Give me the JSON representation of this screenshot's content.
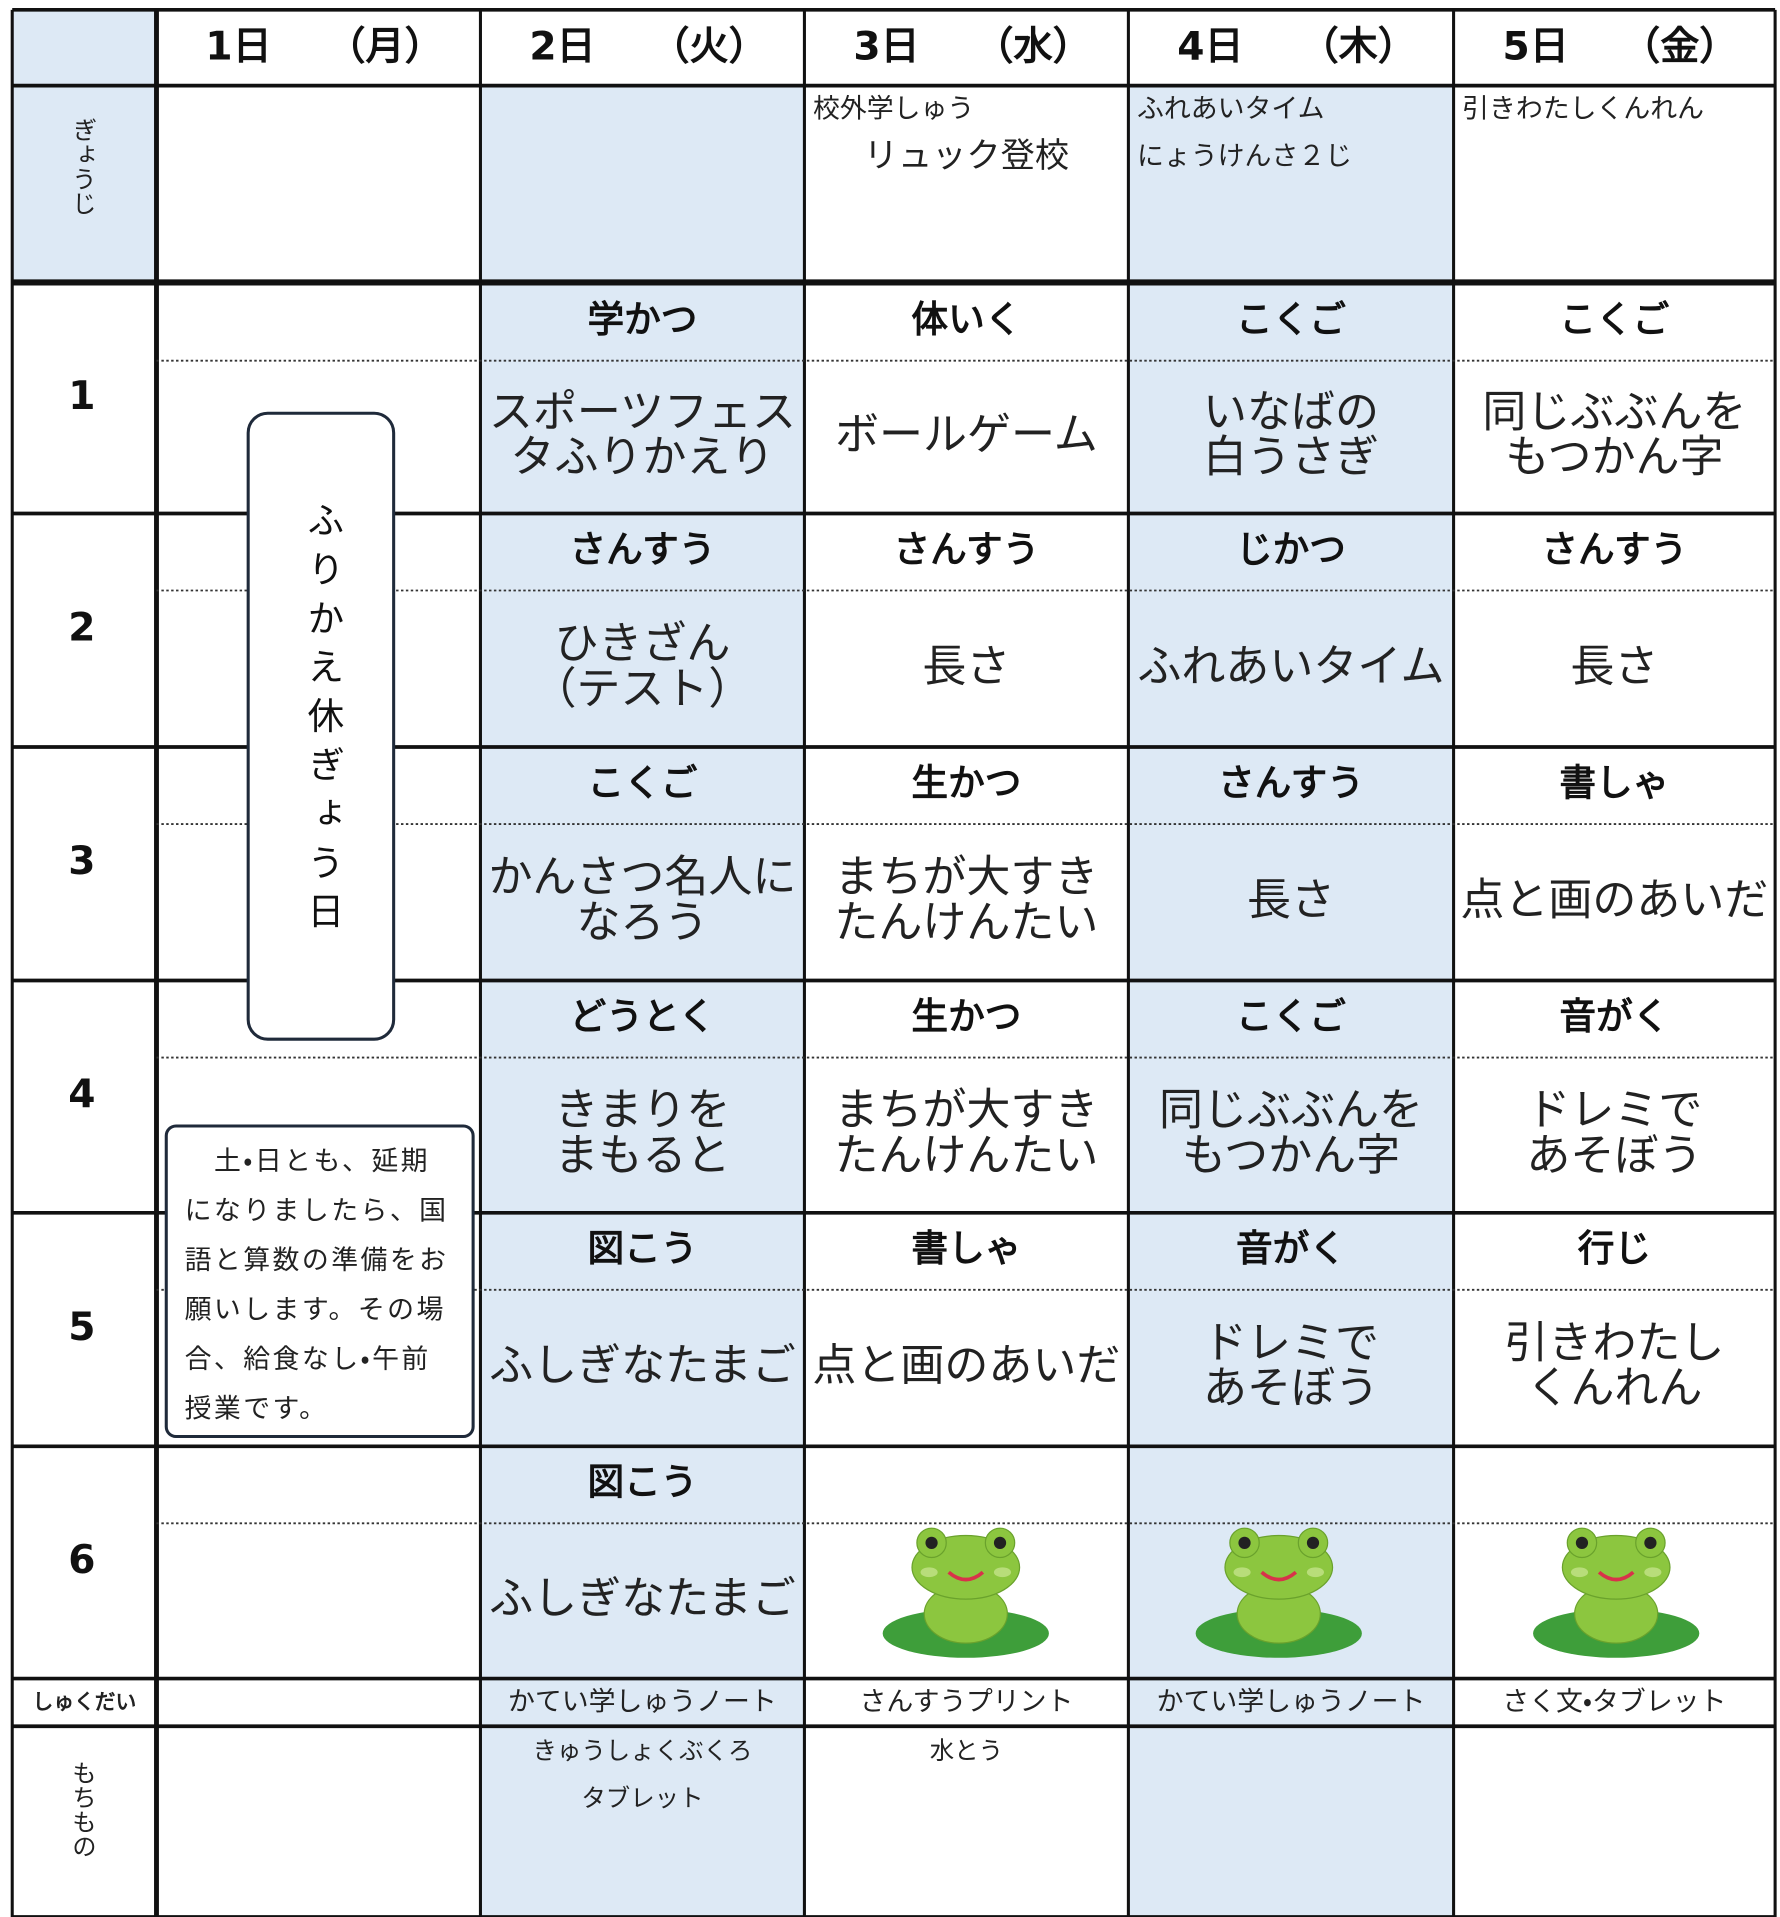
{
  "header": {
    "days": [
      {
        "day": "1日",
        "weekday": "（月）"
      },
      {
        "day": "2日",
        "weekday": "（火）"
      },
      {
        "day": "3日",
        "weekday": "（水）"
      },
      {
        "day": "4日",
        "weekday": "（木）"
      },
      {
        "day": "5日",
        "weekday": "（金）"
      }
    ]
  },
  "row_labels": {
    "gyouji": "ぎょうじ",
    "shukudai": "しゅくだい",
    "mochimono": "もちもの"
  },
  "gyouji": [
    null,
    null,
    [
      "校外学しゅう",
      "リュック登校"
    ],
    [
      "ふれあいタイム",
      "にょうけんさ２じ"
    ],
    [
      "引きわたしくんれん"
    ]
  ],
  "periods": [
    {
      "label": "1",
      "cells": [
        null,
        {
          "subject": "学かつ",
          "content": [
            "スポーツフェス",
            "タふりかえり"
          ]
        },
        {
          "subject": "体いく",
          "content": [
            "ボールゲーム"
          ]
        },
        {
          "subject": "こくご",
          "content": [
            "いなばの",
            "白うさぎ"
          ]
        },
        {
          "subject": "こくご",
          "content": [
            "同じぶぶんを",
            "もつかん字"
          ]
        }
      ]
    },
    {
      "label": "2",
      "cells": [
        null,
        {
          "subject": "さんすう",
          "content": [
            "ひきざん",
            "（テスト）"
          ]
        },
        {
          "subject": "さんすう",
          "content": [
            "長さ"
          ]
        },
        {
          "subject": "じかつ",
          "content": [
            "ふれあいタイム"
          ]
        },
        {
          "subject": "さんすう",
          "content": [
            "長さ"
          ]
        }
      ]
    },
    {
      "label": "3",
      "cells": [
        null,
        {
          "subject": "こくご",
          "content": [
            "かんさつ名人に",
            "なろう"
          ]
        },
        {
          "subject": "生かつ",
          "content": [
            "まちが大すき",
            "たんけんたい"
          ]
        },
        {
          "subject": "さんすう",
          "content": [
            "長さ"
          ]
        },
        {
          "subject": "書しゃ",
          "content": [
            "点と画のあいだ"
          ]
        }
      ]
    },
    {
      "label": "4",
      "cells": [
        null,
        {
          "subject": "どうとく",
          "content": [
            "きまりを",
            "まもると"
          ]
        },
        {
          "subject": "生かつ",
          "content": [
            "まちが大すき",
            "たんけんたい"
          ]
        },
        {
          "subject": "こくご",
          "content": [
            "同じぶぶんを",
            "もつかん字"
          ]
        },
        {
          "subject": "音がく",
          "content": [
            "ドレミで",
            "あそぼう"
          ]
        }
      ]
    },
    {
      "label": "5",
      "cells": [
        null,
        {
          "subject": "図こう",
          "content": [
            "ふしぎなたまご"
          ]
        },
        {
          "subject": "書しゃ",
          "content": [
            "点と画のあいだ"
          ]
        },
        {
          "subject": "音がく",
          "content": [
            "ドレミで",
            "あそぼう"
          ]
        },
        {
          "subject": "行じ",
          "content": [
            "引きわたし",
            "くんれん"
          ]
        }
      ]
    },
    {
      "label": "6",
      "cells": [
        null,
        {
          "subject": "図こう",
          "content": [
            "ふしぎなたまご"
          ]
        },
        null,
        null,
        null
      ]
    }
  ],
  "monday_note": "ふりかえ休ぎょう日",
  "notice": [
    "土・日とも、延期",
    "になりましたら、国",
    "語と算数の準備をお",
    "願いします。その場",
    "合、給食なし・午前",
    "授業です。"
  ],
  "shukudai": [
    null,
    "かてい学しゅうノート",
    "さんすうプリント",
    "かてい学しゅうノート",
    "さく文・タブレット"
  ],
  "mochimono": [
    null,
    [
      "きゅうしょくぶくろ",
      "タブレット"
    ],
    [
      "水とう"
    ],
    null,
    null
  ]
}
